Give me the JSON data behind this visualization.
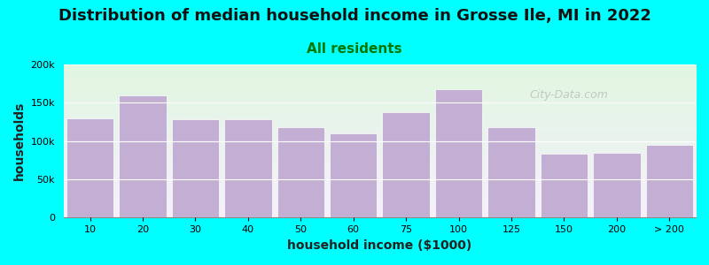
{
  "title": "Distribution of median household income in Grosse Ile, MI in 2022",
  "subtitle": "All residents",
  "xlabel": "household income ($1000)",
  "ylabel": "households",
  "background_color": "#00FFFF",
  "bar_color": "#c4afd4",
  "bar_edge_color": "#ffffff",
  "categories": [
    "10",
    "20",
    "30",
    "40",
    "50",
    "60",
    "75",
    "100",
    "125",
    "150",
    "200",
    "> 200"
  ],
  "values": [
    130000,
    160000,
    128000,
    128000,
    118000,
    110000,
    138000,
    168000,
    118000,
    83000,
    85000,
    95000
  ],
  "ylim": [
    0,
    200000
  ],
  "yticks": [
    0,
    50000,
    100000,
    150000,
    200000
  ],
  "ytick_labels": [
    "0",
    "50k",
    "100k",
    "150k",
    "200k"
  ],
  "watermark": "City-Data.com",
  "title_fontsize": 13,
  "subtitle_fontsize": 11,
  "axis_label_fontsize": 10,
  "tick_fontsize": 8
}
